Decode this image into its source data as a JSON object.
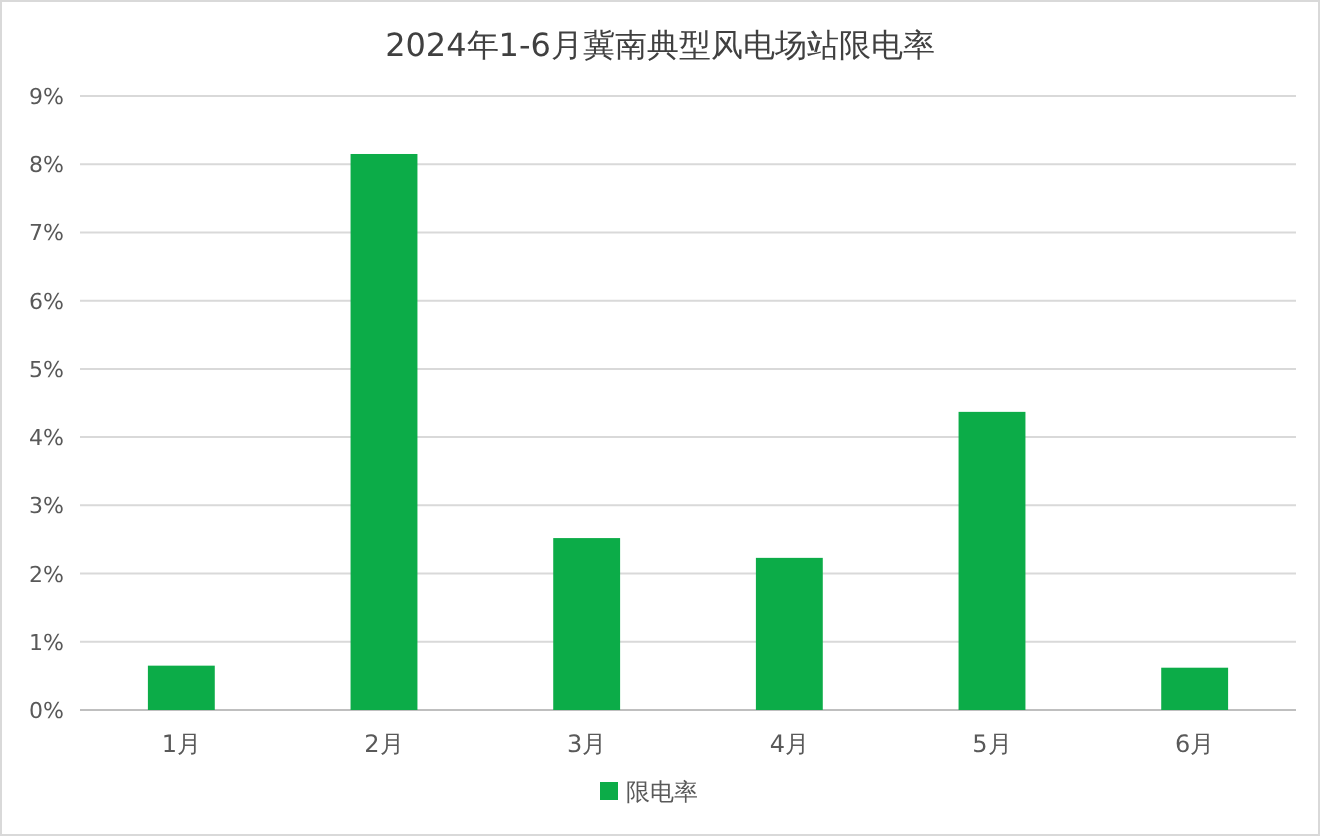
{
  "chart_data": {
    "type": "bar",
    "title": "2024年1-6月冀南典型风电场站限电率",
    "categories": [
      "1月",
      "2月",
      "3月",
      "4月",
      "5月",
      "6月"
    ],
    "series": [
      {
        "name": "限电率",
        "color": "#0cac48",
        "values": [
          0.65,
          8.15,
          2.52,
          2.23,
          4.37,
          0.62
        ]
      }
    ],
    "ylim": [
      0,
      9
    ],
    "yticks": [
      {
        "value": 0,
        "label": "0%"
      },
      {
        "value": 1,
        "label": "1%"
      },
      {
        "value": 2,
        "label": "2%"
      },
      {
        "value": 3,
        "label": "3%"
      },
      {
        "value": 4,
        "label": "4%"
      },
      {
        "value": 5,
        "label": "5%"
      },
      {
        "value": 6,
        "label": "6%"
      },
      {
        "value": 7,
        "label": "7%"
      },
      {
        "value": 8,
        "label": "8%"
      },
      {
        "value": 9,
        "label": "9%"
      }
    ],
    "grid": "y",
    "legend": "bottom"
  }
}
